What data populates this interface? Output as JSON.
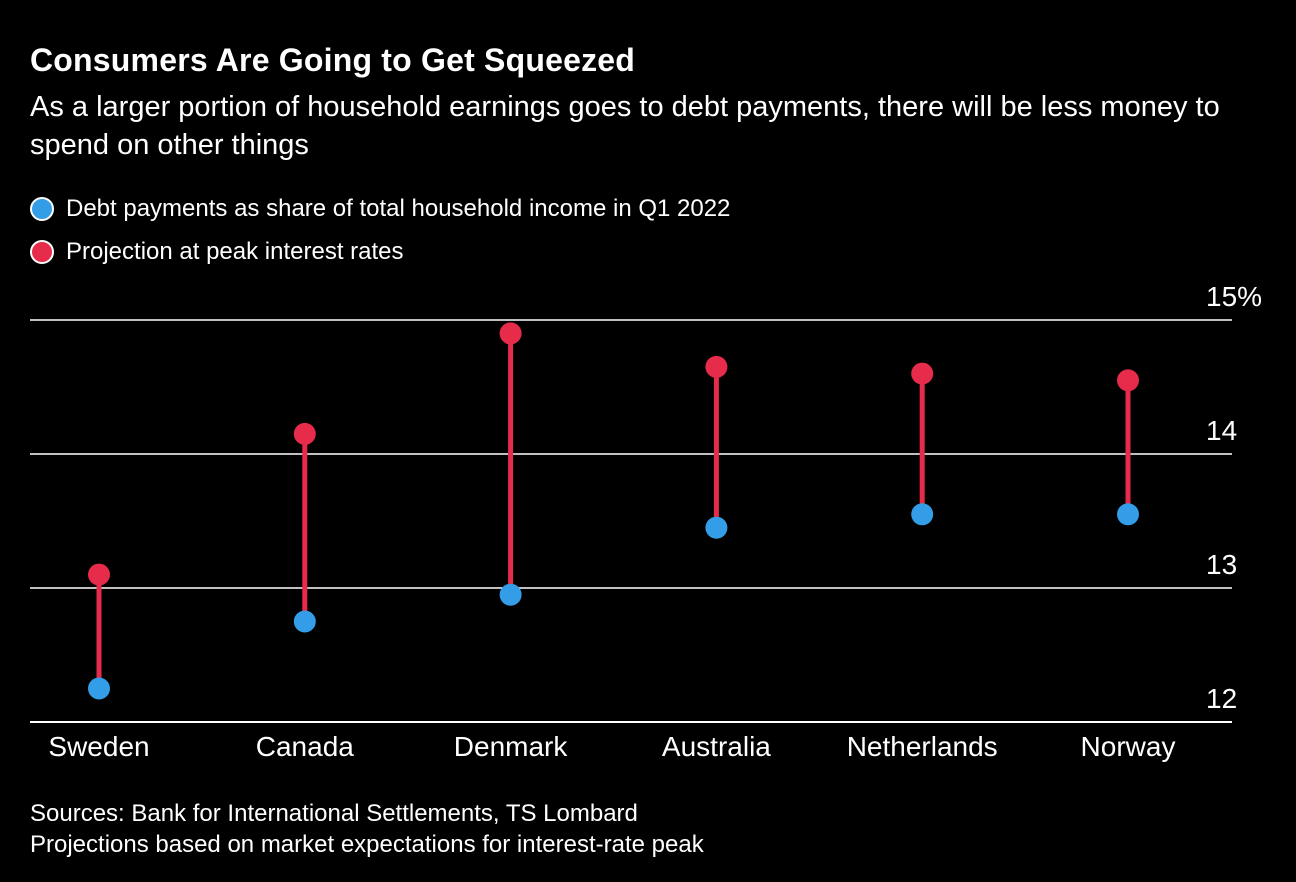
{
  "header": {
    "title": "Consumers Are Going to Get Squeezed",
    "subtitle": "As a larger portion of household earnings goes to debt payments, there will be less money to spend on other things"
  },
  "legend": {
    "items": [
      {
        "label": "Debt payments as share of total household income in Q1 2022",
        "series": "q1_2022",
        "color": "#339de8"
      },
      {
        "label": "Projection at peak interest rates",
        "series": "projection",
        "color": "#e62b4b"
      }
    ]
  },
  "chart_data": {
    "type": "dumbbell",
    "categories": [
      "Sweden",
      "Canada",
      "Denmark",
      "Australia",
      "Netherlands",
      "Norway"
    ],
    "series": [
      {
        "name": "Debt payments as share of total household income in Q1 2022",
        "key": "q1_2022",
        "color": "#339de8",
        "values": [
          12.25,
          12.75,
          12.95,
          13.45,
          13.55,
          13.55
        ]
      },
      {
        "name": "Projection at peak interest rates",
        "key": "projection",
        "color": "#e62b4b",
        "values": [
          13.1,
          14.15,
          14.9,
          14.65,
          14.6,
          14.55
        ]
      }
    ],
    "ylim": [
      12,
      15
    ],
    "yticks": [
      12,
      13,
      14,
      15
    ],
    "ytick_labels": [
      "12",
      "13",
      "14",
      "15%"
    ],
    "grid": true,
    "legend_position": "top-left",
    "xlabel": "",
    "ylabel": ""
  },
  "footer": {
    "sources": "Sources: Bank for International Settlements, TS Lombard",
    "note": "Projections based on market expectations for interest-rate peak"
  },
  "colors": {
    "background": "#000000",
    "text": "#ffffff",
    "blue": "#339de8",
    "red": "#e62b4b",
    "grid": "#ffffff"
  }
}
